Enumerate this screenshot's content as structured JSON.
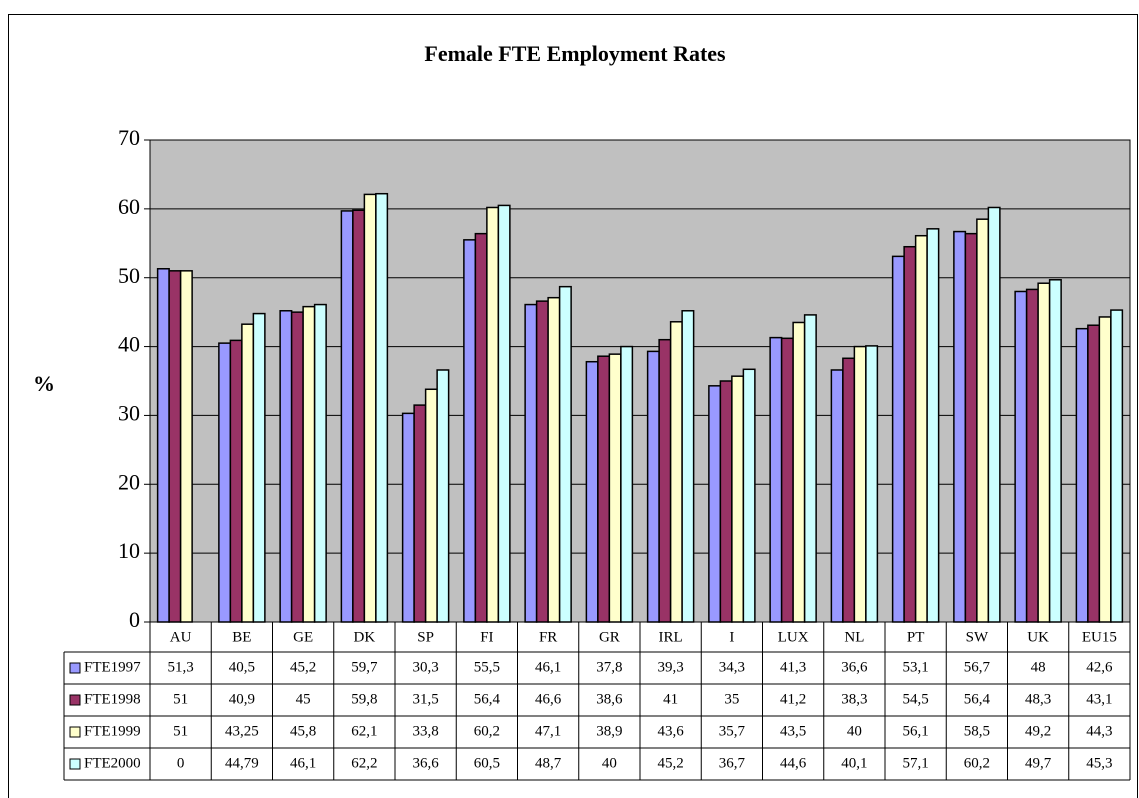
{
  "chart_data": {
    "type": "bar",
    "title": "Female FTE Employment Rates",
    "y_label": "%",
    "categories": [
      "AU",
      "BE",
      "GE",
      "DK",
      "SP",
      "FI",
      "FR",
      "GR",
      "IRL",
      "I",
      "LUX",
      "NL",
      "PT",
      "SW",
      "UK",
      "EU15"
    ],
    "series": [
      {
        "name": "FTE1997",
        "color": "#9999ff",
        "values": [
          51.3,
          40.5,
          45.2,
          59.7,
          30.3,
          55.5,
          46.1,
          37.8,
          39.3,
          34.3,
          41.3,
          36.6,
          53.1,
          56.7,
          48,
          42.6
        ],
        "value_labels": [
          "51,3",
          "40,5",
          "45,2",
          "59,7",
          "30,3",
          "55,5",
          "46,1",
          "37,8",
          "39,3",
          "34,3",
          "41,3",
          "36,6",
          "53,1",
          "56,7",
          "48",
          "42,6"
        ]
      },
      {
        "name": "FTE1998",
        "color": "#993366",
        "values": [
          51,
          40.9,
          45,
          59.8,
          31.5,
          56.4,
          46.6,
          38.6,
          41,
          35,
          41.2,
          38.3,
          54.5,
          56.4,
          48.3,
          43.1
        ],
        "value_labels": [
          "51",
          "40,9",
          "45",
          "59,8",
          "31,5",
          "56,4",
          "46,6",
          "38,6",
          "41",
          "35",
          "41,2",
          "38,3",
          "54,5",
          "56,4",
          "48,3",
          "43,1"
        ]
      },
      {
        "name": "FTE1999",
        "color": "#ffffcc",
        "values": [
          51,
          43.25,
          45.8,
          62.1,
          33.8,
          60.2,
          47.1,
          38.9,
          43.6,
          35.7,
          43.5,
          40,
          56.1,
          58.5,
          49.2,
          44.3
        ],
        "value_labels": [
          "51",
          "43,25",
          "45,8",
          "62,1",
          "33,8",
          "60,2",
          "47,1",
          "38,9",
          "43,6",
          "35,7",
          "43,5",
          "40",
          "56,1",
          "58,5",
          "49,2",
          "44,3"
        ]
      },
      {
        "name": "FTE2000",
        "color": "#ccffff",
        "values": [
          0,
          44.79,
          46.1,
          62.2,
          36.6,
          60.5,
          48.7,
          40,
          45.2,
          36.7,
          44.6,
          40.1,
          57.1,
          60.2,
          49.7,
          45.3
        ],
        "value_labels": [
          "0",
          "44,79",
          "46,1",
          "62,2",
          "36,6",
          "60,5",
          "48,7",
          "40",
          "45,2",
          "36,7",
          "44,6",
          "40,1",
          "57,1",
          "60,2",
          "49,7",
          "45,3"
        ]
      }
    ],
    "ylim": [
      0,
      70
    ],
    "yticks": [
      0,
      10,
      20,
      30,
      40,
      50,
      60,
      70
    ],
    "grid": true,
    "plot_background": "#c0c0c0"
  }
}
